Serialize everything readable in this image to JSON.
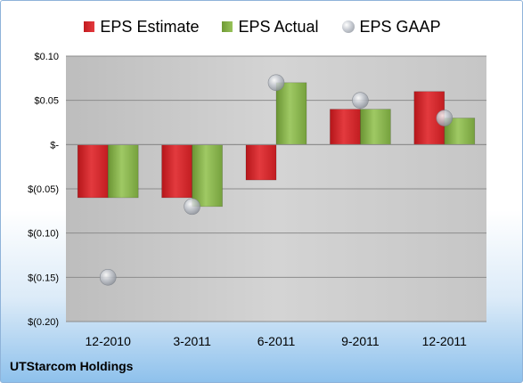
{
  "company": "UTStarcom Holdings",
  "legend": {
    "estimate": "EPS Estimate",
    "actual": "EPS Actual",
    "gaap": "EPS GAAP"
  },
  "colors": {
    "estimate": "#d42a2e",
    "actual": "#86b049",
    "gaap": "#b9bdc4",
    "plot_bg": "#c8c8c8"
  },
  "chart_data": {
    "type": "bar",
    "categories": [
      "12-2010",
      "3-2011",
      "6-2011",
      "9-2011",
      "12-2011"
    ],
    "series": [
      {
        "name": "EPS Estimate",
        "values": [
          -0.06,
          -0.06,
          -0.04,
          0.04,
          0.06
        ]
      },
      {
        "name": "EPS Actual",
        "values": [
          -0.06,
          -0.07,
          0.07,
          0.04,
          0.03
        ]
      },
      {
        "name": "EPS GAAP",
        "values": [
          -0.15,
          -0.07,
          0.07,
          0.05,
          0.03
        ]
      }
    ],
    "ylim": [
      -0.2,
      0.1
    ],
    "yticks": [
      0.1,
      0.05,
      0,
      -0.05,
      -0.1,
      -0.15,
      -0.2
    ],
    "ytick_labels": [
      "$0.10",
      "$0.05",
      "$-",
      "$(0.05)",
      "$(0.10)",
      "$(0.15)",
      "$(0.20)"
    ],
    "legend_position": "top",
    "grid": true
  }
}
